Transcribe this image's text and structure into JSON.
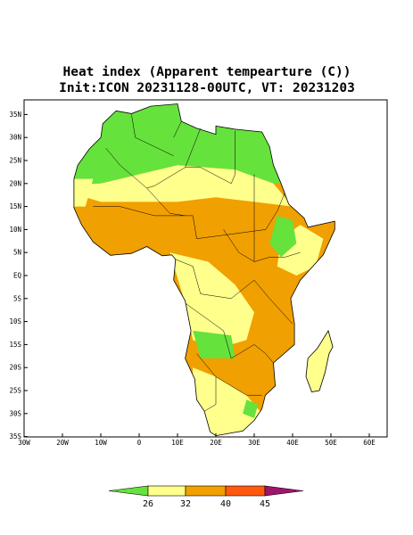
{
  "header": {
    "title": "Heat index (Apparent tempearture (C))",
    "subtitle": "Init:ICON 20231128-00UTC, VT: 20231203"
  },
  "map": {
    "lat_ticks": [
      {
        "value": 35,
        "label": "35N"
      },
      {
        "value": 30,
        "label": "30N"
      },
      {
        "value": 25,
        "label": "25N"
      },
      {
        "value": 20,
        "label": "20N"
      },
      {
        "value": 15,
        "label": "15N"
      },
      {
        "value": 10,
        "label": "10N"
      },
      {
        "value": 5,
        "label": "5N"
      },
      {
        "value": 0,
        "label": "EQ"
      },
      {
        "value": -5,
        "label": "5S"
      },
      {
        "value": -10,
        "label": "10S"
      },
      {
        "value": -15,
        "label": "15S"
      },
      {
        "value": -20,
        "label": "20S"
      },
      {
        "value": -25,
        "label": "25S"
      },
      {
        "value": -30,
        "label": "30S"
      },
      {
        "value": -35,
        "label": "35S"
      }
    ],
    "lon_ticks": [
      {
        "value": -30,
        "label": "30W"
      },
      {
        "value": -20,
        "label": "20W"
      },
      {
        "value": -10,
        "label": "10W"
      },
      {
        "value": 0,
        "label": "0"
      },
      {
        "value": 10,
        "label": "10E"
      },
      {
        "value": 20,
        "label": "20E"
      },
      {
        "value": 30,
        "label": "30E"
      },
      {
        "value": 40,
        "label": "40E"
      },
      {
        "value": 50,
        "label": "50E"
      },
      {
        "value": 60,
        "label": "60E"
      }
    ]
  },
  "colorbar": {
    "levels": [
      26,
      32,
      40,
      45
    ],
    "colors": [
      "#66e23c",
      "#ffff8c",
      "#f0a000",
      "#ff5a10",
      "#a0146e"
    ]
  }
}
